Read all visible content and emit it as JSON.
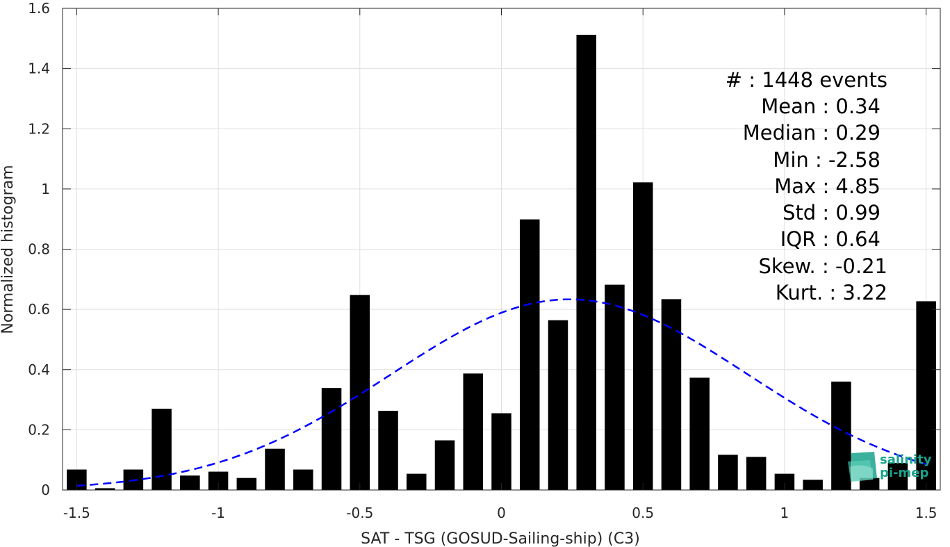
{
  "chart_data": {
    "type": "bar",
    "xlabel": "SAT - TSG (GOSUD-Sailing-ship) (C3)",
    "ylabel": "Normalized histogram",
    "xlim": [
      -1.55,
      1.55
    ],
    "ylim": [
      0,
      1.6
    ],
    "xticks": [
      -1.5,
      -1,
      -0.5,
      0,
      0.5,
      1,
      1.5
    ],
    "xtick_labels": [
      "-1.5",
      "-1",
      "-0.5",
      "0",
      "0.5",
      "1",
      "1.5"
    ],
    "yticks": [
      0,
      0.2,
      0.4,
      0.6,
      0.8,
      1,
      1.2,
      1.4,
      1.6
    ],
    "ytick_labels": [
      "0",
      "0.2",
      "0.4",
      "0.6",
      "0.8",
      "1",
      "1.2",
      "1.4",
      "1.6"
    ],
    "grid": true,
    "bar_color": "#000000",
    "bar_width": 0.07,
    "x": [
      -1.5,
      -1.4,
      -1.3,
      -1.2,
      -1.1,
      -1.0,
      -0.9,
      -0.8,
      -0.7,
      -0.6,
      -0.5,
      -0.4,
      -0.3,
      -0.2,
      -0.1,
      0.0,
      0.1,
      0.2,
      0.3,
      0.4,
      0.5,
      0.6,
      0.7,
      0.8,
      0.9,
      1.0,
      1.1,
      1.2,
      1.3,
      1.4,
      1.5
    ],
    "values": [
      0.068,
      0.006,
      0.068,
      0.27,
      0.048,
      0.061,
      0.04,
      0.137,
      0.068,
      0.339,
      0.648,
      0.263,
      0.054,
      0.165,
      0.387,
      0.255,
      0.899,
      0.564,
      1.512,
      0.682,
      1.022,
      0.634,
      0.373,
      0.117,
      0.11,
      0.054,
      0.034,
      0.36,
      0.04,
      0.09,
      0.627
    ],
    "fit": {
      "kind": "gaussian",
      "mean": 0.24,
      "std": 0.63,
      "range": [
        -1.5,
        1.5
      ],
      "color": "#0000ff",
      "style": "dashed"
    },
    "stats": [
      "#  : 1448 events",
      "Mean : 0.34",
      "Median : 0.29",
      "Min : -2.58",
      "Max : 4.85",
      "Std : 0.99",
      "IQR : 0.64",
      "Skew. : -0.21",
      "Kurt. : 3.22"
    ]
  },
  "logo": {
    "line1": "salinity",
    "line2": "pi-mep",
    "color": "#1aa38c"
  }
}
